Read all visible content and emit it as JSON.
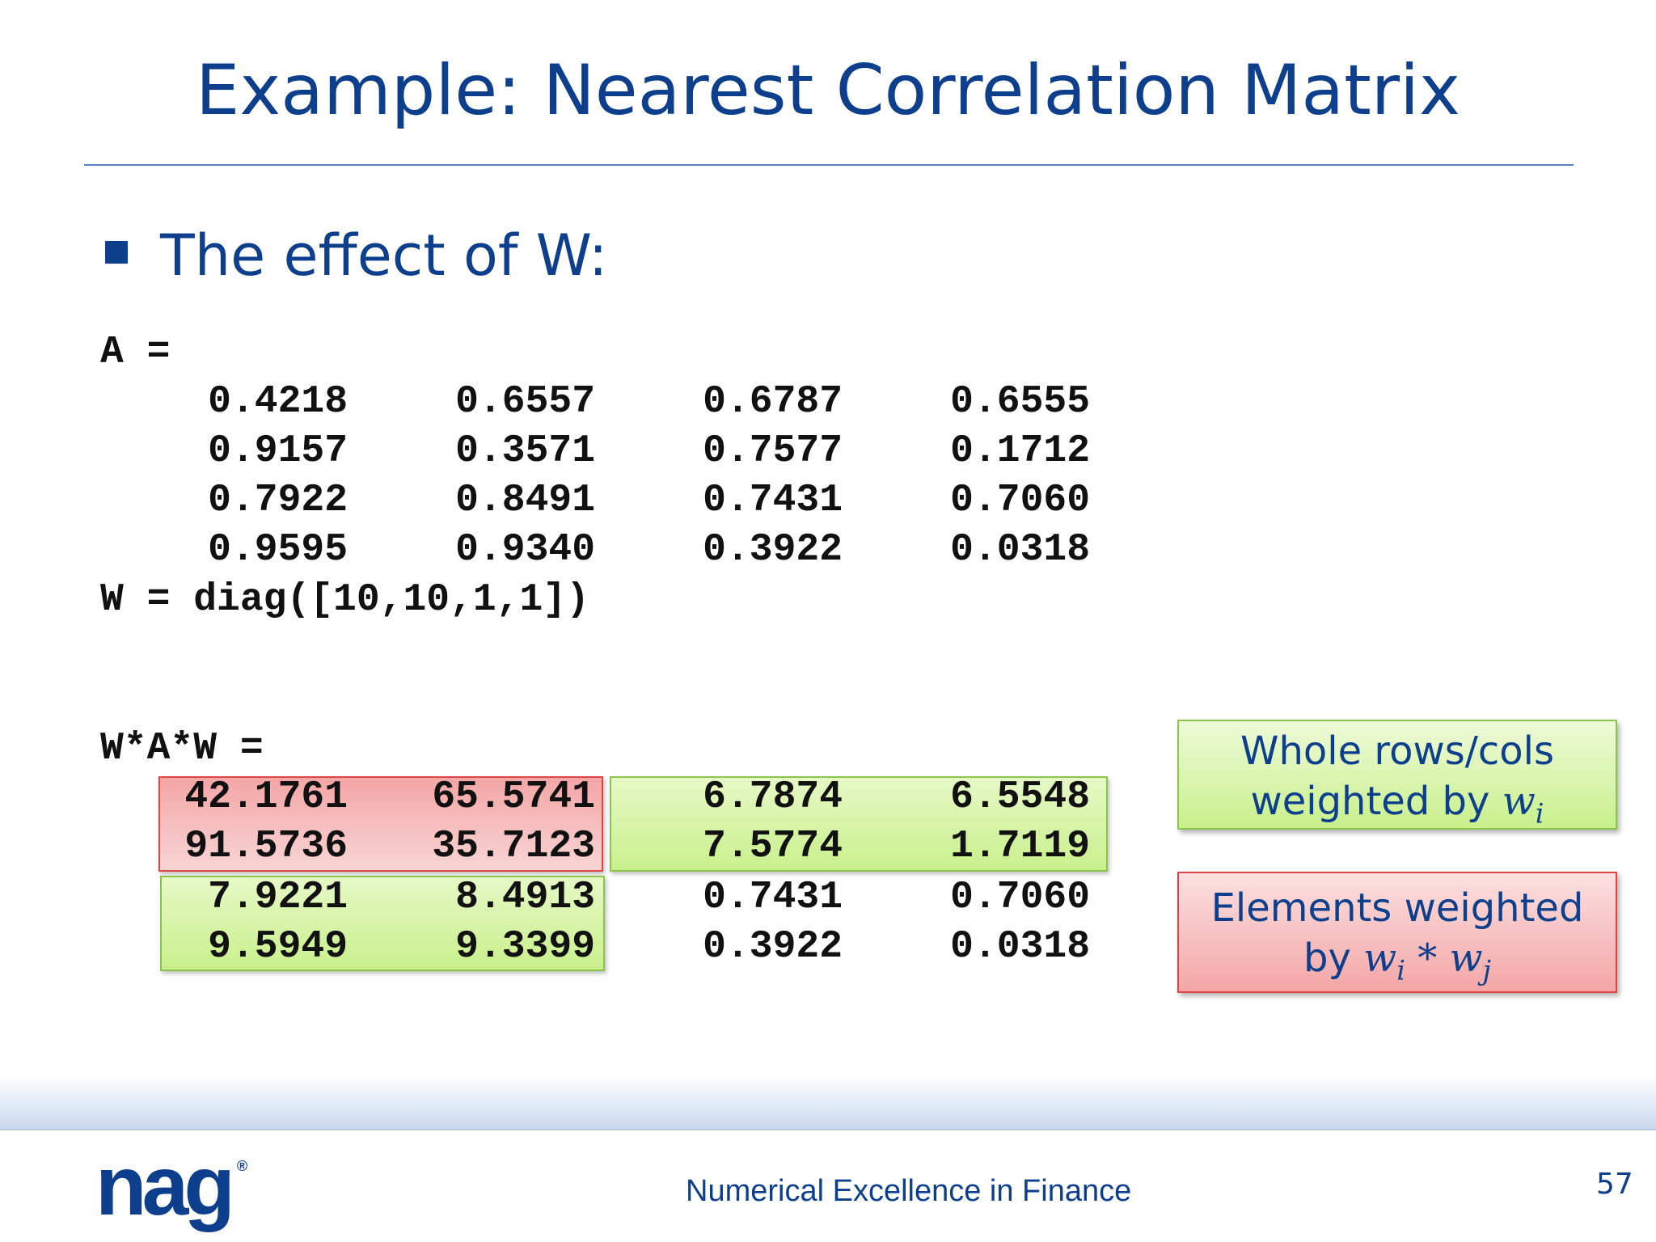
{
  "slide": {
    "title": "Example: Nearest Correlation Matrix",
    "bullet": "The effect of W:",
    "page_number": "57"
  },
  "matrix_a": {
    "label": "A =",
    "rows": [
      [
        "0.4218",
        "0.6557",
        "0.6787",
        "0.6555"
      ],
      [
        "0.9157",
        "0.3571",
        "0.7577",
        "0.1712"
      ],
      [
        "0.7922",
        "0.8491",
        "0.7431",
        "0.7060"
      ],
      [
        "0.9595",
        "0.9340",
        "0.3922",
        "0.0318"
      ]
    ]
  },
  "w_def": "W = diag([10,10,1,1])",
  "matrix_wawp": {
    "label": "W*A*W =",
    "rows": [
      [
        "42.1761",
        "65.5741",
        "6.7874",
        "6.5548"
      ],
      [
        "91.5736",
        "35.7123",
        "7.5774",
        "1.7119"
      ],
      [
        "7.9221",
        "8.4913",
        "0.7431",
        "0.7060"
      ],
      [
        "9.5949",
        "9.3399",
        "0.3922",
        "0.0318"
      ]
    ]
  },
  "callouts": {
    "green_line1": "Whole rows/cols",
    "green_line2": "weighted by ",
    "green_math": "wi",
    "red_line1": "Elements weighted",
    "red_line2": "by ",
    "red_math": "wi * wj"
  },
  "footer": {
    "logo": "nag",
    "logo_mark": "®",
    "tagline": "Numerical Excellence in Finance"
  },
  "colors": {
    "title_blue": "#0d3f8c",
    "highlight_red": "#f4a6a6",
    "highlight_green": "#c9f08c"
  }
}
